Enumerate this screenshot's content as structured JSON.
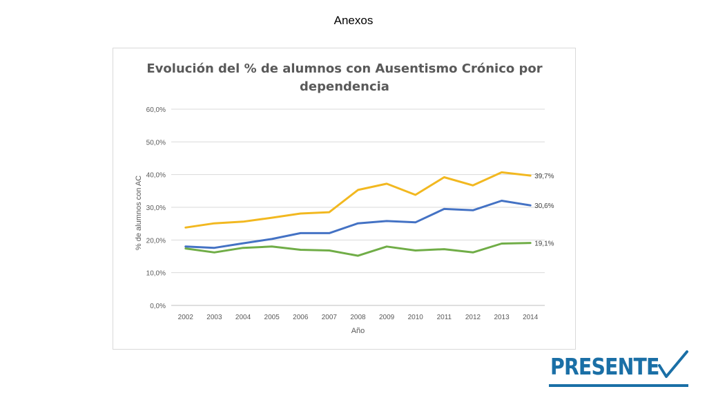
{
  "header": {
    "title": "Anexos"
  },
  "logo": {
    "text": "PRESENTE",
    "icon": "checkmark-icon",
    "color": "#1a6fa6"
  },
  "chart_data": {
    "type": "line",
    "title": "Evolución del % de alumnos con Ausentismo Crónico por dependencia",
    "title_lines": [
      "Evolución del % de alumnos con Ausentismo Crónico por",
      "dependencia"
    ],
    "xlabel": "Año",
    "ylabel": "% de alumnos con AC",
    "categories": [
      "2002",
      "2003",
      "2004",
      "2005",
      "2006",
      "2007",
      "2008",
      "2009",
      "2010",
      "2011",
      "2012",
      "2013",
      "2014"
    ],
    "ylim": [
      0,
      60
    ],
    "yticks": [
      0,
      10,
      20,
      30,
      40,
      50,
      60
    ],
    "ytick_labels": [
      "0,0%",
      "10,0%",
      "20,0%",
      "30,0%",
      "40,0%",
      "50,0%",
      "60,0%"
    ],
    "grid": true,
    "series": [
      {
        "color": "#f2b820",
        "values": [
          23.8,
          25.1,
          25.6,
          26.8,
          28.1,
          28.5,
          35.3,
          37.2,
          33.8,
          39.2,
          36.7,
          40.7,
          39.7
        ],
        "end_label": "39,7%"
      },
      {
        "color": "#4472c4",
        "values": [
          18.0,
          17.6,
          19.0,
          20.3,
          22.1,
          22.1,
          25.1,
          25.8,
          25.4,
          29.5,
          29.1,
          32.0,
          30.6
        ],
        "end_label": "30,6%"
      },
      {
        "color": "#70ad47",
        "values": [
          17.4,
          16.2,
          17.6,
          18.0,
          17.0,
          16.8,
          15.2,
          18.0,
          16.8,
          17.2,
          16.2,
          18.9,
          19.1
        ],
        "end_label": "19,1%"
      }
    ]
  }
}
